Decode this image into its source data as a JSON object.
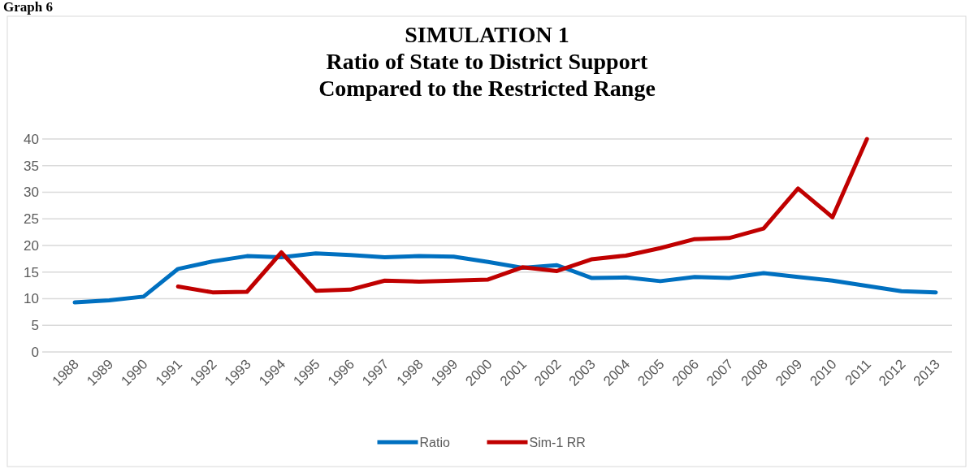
{
  "chart_data": {
    "type": "line",
    "title": "SIMULATION 1\nRatio of State to District Support\nCompared to the Restricted Range",
    "annotations": [
      "Graph 6"
    ],
    "categories": [
      "1988",
      "1989",
      "1990",
      "1991",
      "1992",
      "1993",
      "1994",
      "1995",
      "1996",
      "1997",
      "1998",
      "1999",
      "2000",
      "2001",
      "2002",
      "2003",
      "2004",
      "2005",
      "2006",
      "2007",
      "2008",
      "2009",
      "2010",
      "2011",
      "2012",
      "2013"
    ],
    "series": [
      {
        "name": "Ratio",
        "color": "#0070c0",
        "values": [
          9.3,
          9.7,
          10.4,
          15.6,
          17.0,
          18.0,
          17.8,
          18.5,
          18.2,
          17.8,
          18.0,
          17.9,
          16.9,
          15.8,
          16.3,
          13.9,
          14.0,
          13.3,
          14.1,
          13.9,
          14.8,
          14.1,
          13.4,
          12.4,
          11.4,
          11.2
        ]
      },
      {
        "name": "Sim-1 RR",
        "color": "#c00000",
        "values": [
          null,
          null,
          null,
          12.3,
          11.2,
          11.3,
          18.7,
          11.5,
          11.7,
          13.4,
          13.2,
          13.4,
          13.6,
          15.9,
          15.2,
          17.4,
          18.1,
          19.5,
          21.2,
          21.4,
          23.2,
          30.7,
          25.3,
          40,
          null,
          null
        ]
      }
    ],
    "ylim": [
      0,
      40
    ],
    "yticks": [
      0,
      5,
      10,
      15,
      20,
      25,
      30,
      35,
      40
    ],
    "grid": "y",
    "legend": "bottom",
    "marker": "none",
    "line_style": "solid"
  }
}
